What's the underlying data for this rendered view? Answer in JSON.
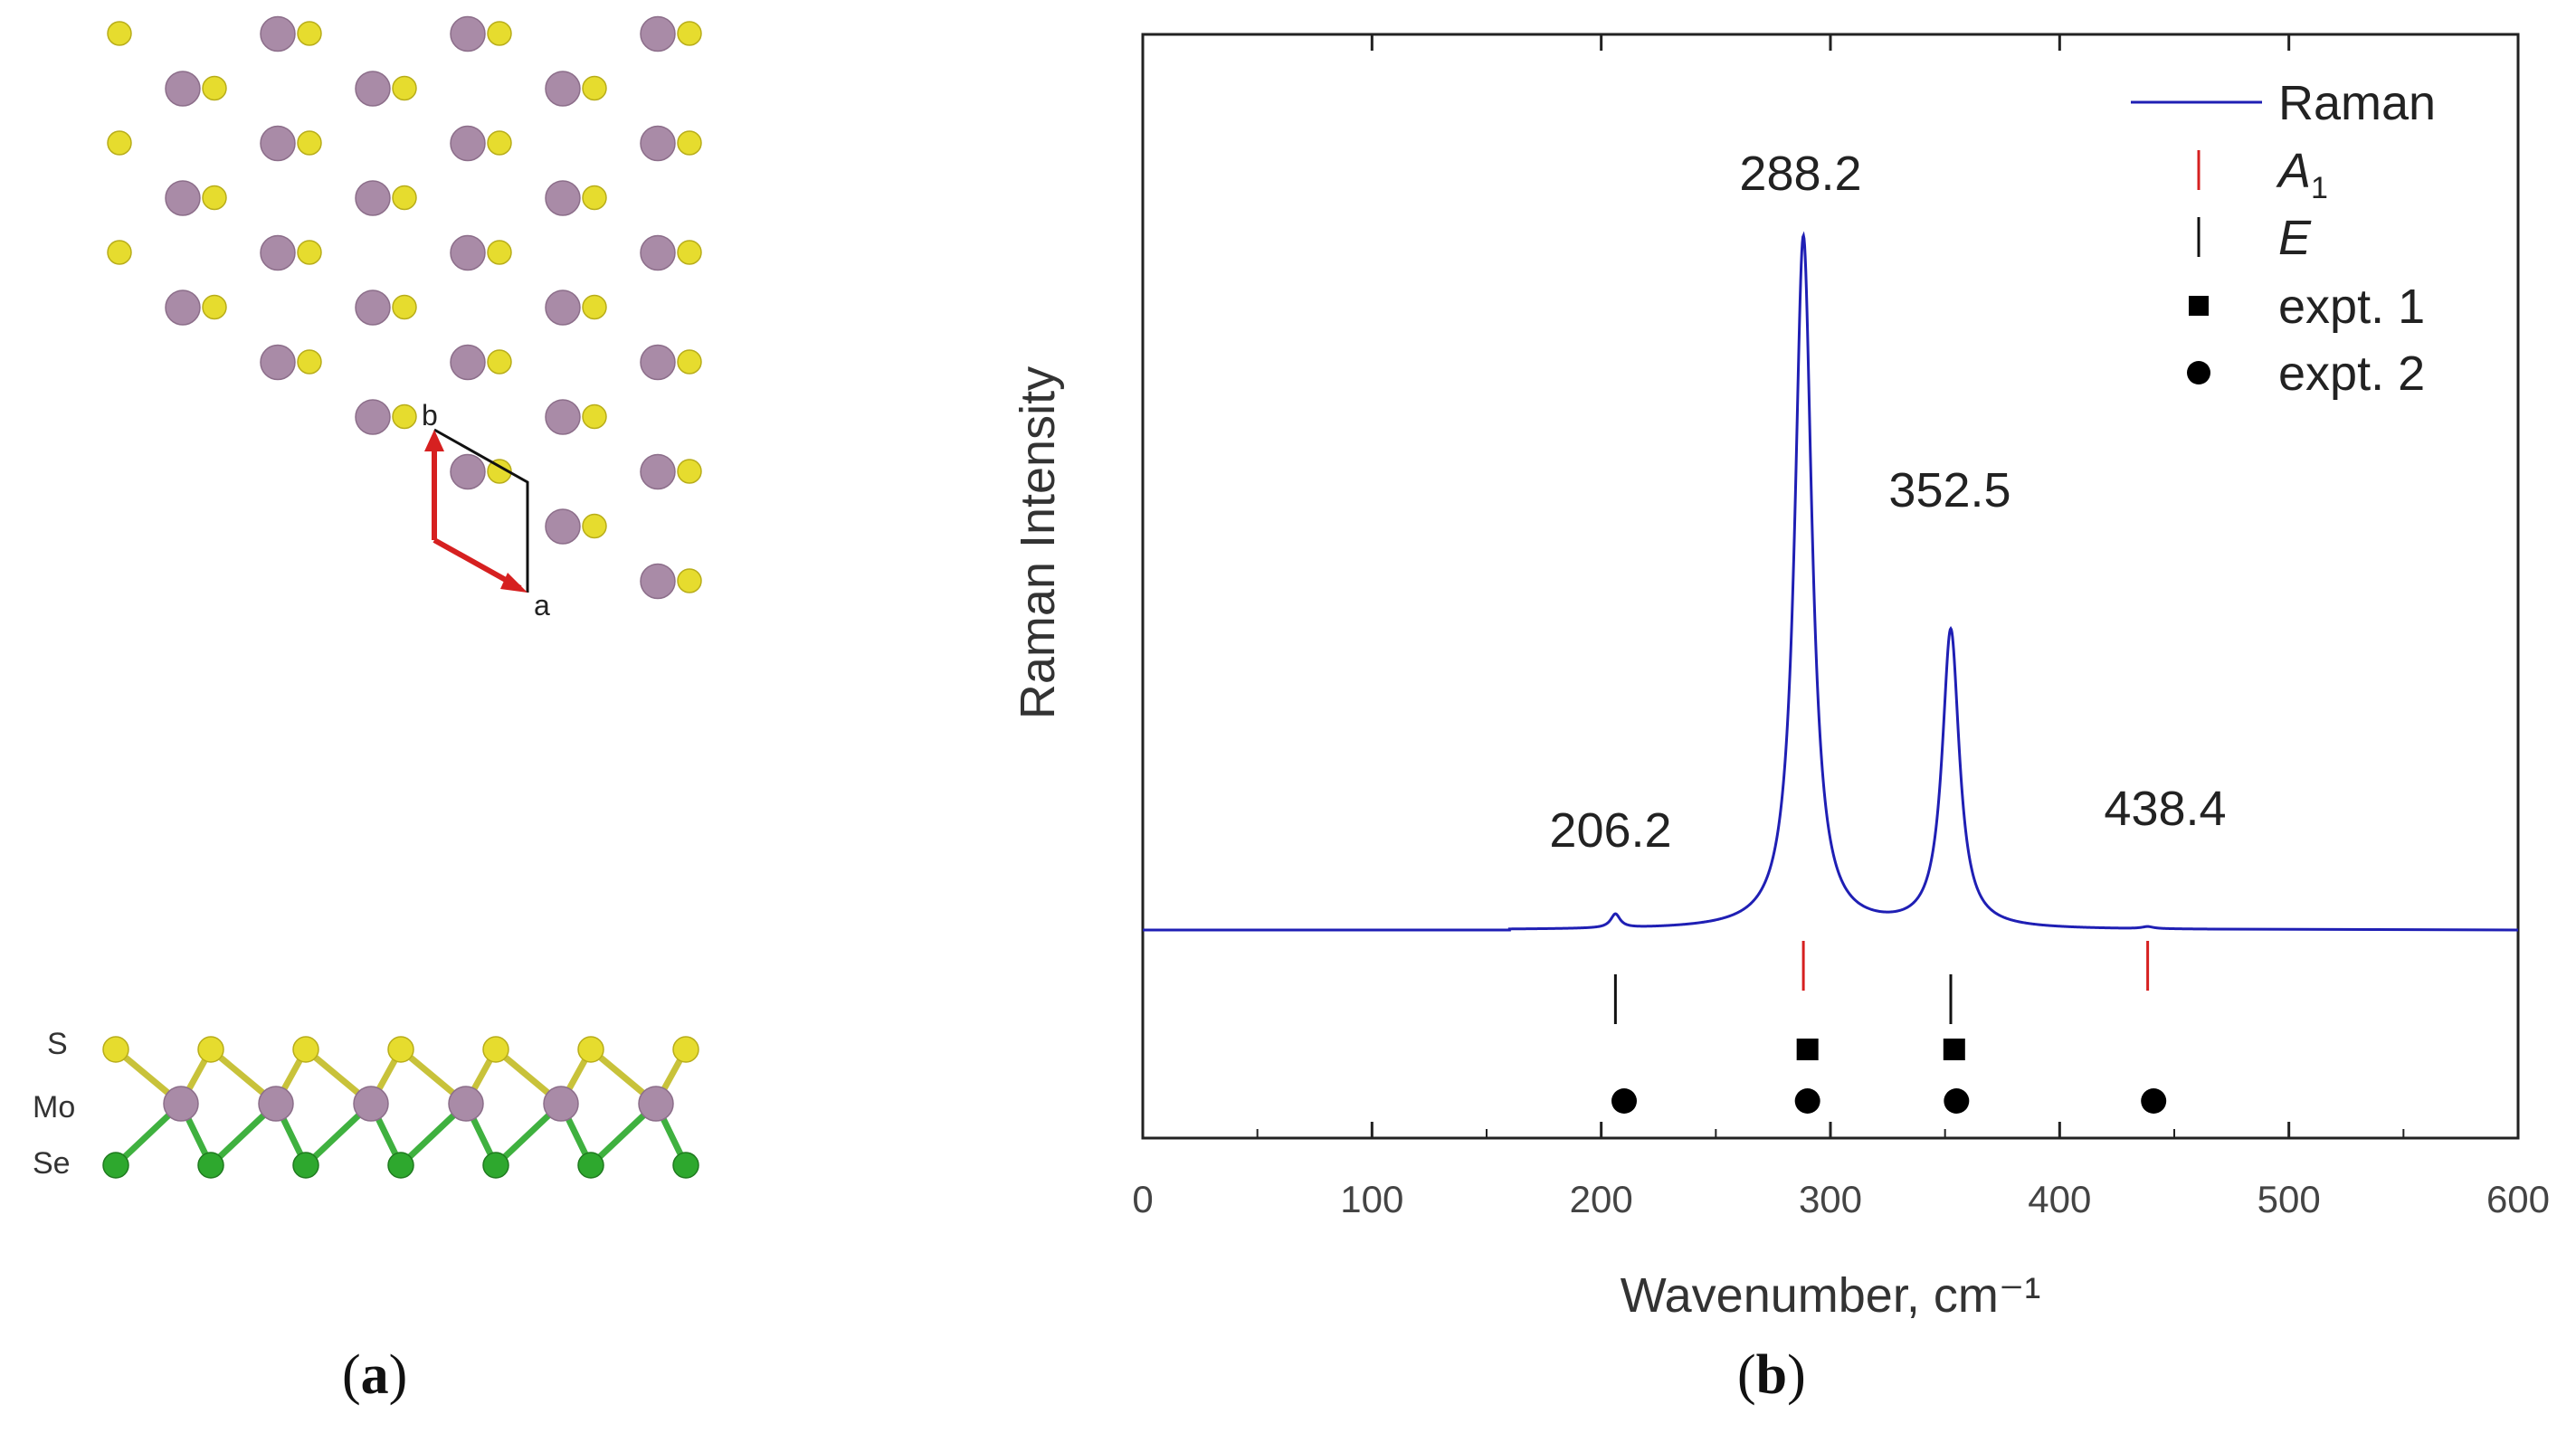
{
  "panel_a": {
    "caption_letter": "a",
    "lattice_labels": {
      "a": "a",
      "b": "b"
    },
    "side_view_labels": {
      "top_layer": "S",
      "middle_layer": "Mo",
      "bottom_layer": "Se"
    },
    "colors": {
      "S": "#e6dc2e",
      "Mo": "#a98ba7",
      "Se": "#2ea82e",
      "vector": "#d62020",
      "cell": "#111111"
    }
  },
  "panel_b": {
    "caption_letter": "b"
  },
  "chart_data": {
    "type": "line",
    "xlabel": "Wavenumber, cm⁻¹",
    "ylabel": "Raman Intensity",
    "xlim": [
      0,
      600
    ],
    "xticks": [
      0,
      100,
      200,
      300,
      400,
      500,
      600
    ],
    "grid": false,
    "legend_position": "top-right",
    "legend": [
      {
        "label": "Raman",
        "marker": "line",
        "color": "#1f1fb4"
      },
      {
        "label": "A",
        "subscript": "1",
        "italic": true,
        "marker": "vtick",
        "color": "#d62020"
      },
      {
        "label": "E",
        "italic": true,
        "marker": "vtick",
        "color": "#111111"
      },
      {
        "label": "expt. 1",
        "marker": "square",
        "color": "#000000"
      },
      {
        "label": "expt. 2",
        "marker": "circle",
        "color": "#000000"
      }
    ],
    "raman_spectrum": {
      "name": "Raman",
      "x_range": [
        160,
        465
      ],
      "baseline": 0.02,
      "peaks": [
        {
          "center": 206.2,
          "height": 0.02,
          "width": 2.5
        },
        {
          "center": 288.2,
          "height": 1.0,
          "width": 4.5
        },
        {
          "center": 352.5,
          "height": 0.43,
          "width": 4.5
        },
        {
          "center": 438.4,
          "height": 0.003,
          "width": 3
        }
      ]
    },
    "peak_labels": [
      "206.2",
      "288.2",
      "352.5",
      "438.4"
    ],
    "A1_modes": [
      288.2,
      438.4
    ],
    "E_modes": [
      206.2,
      352.5
    ],
    "expt_1": [
      290,
      354
    ],
    "expt_2": [
      210,
      290,
      355,
      441
    ]
  }
}
